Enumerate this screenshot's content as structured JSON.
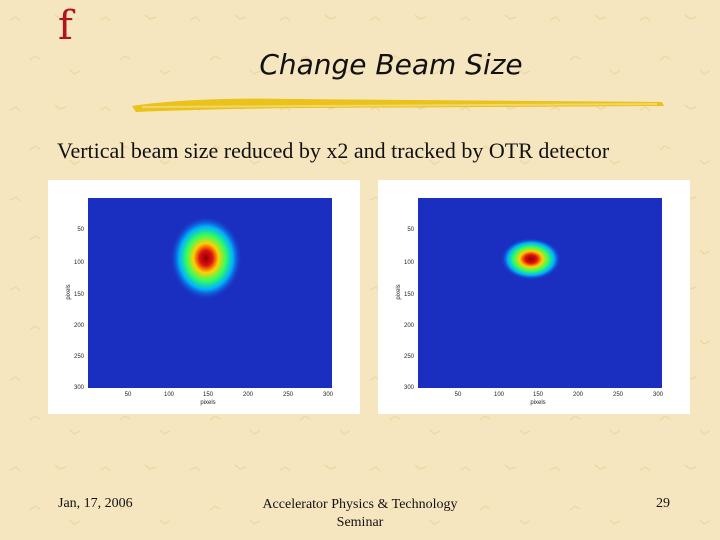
{
  "slide": {
    "logo_char": "f",
    "title": "Change Beam Size",
    "subtitle": "Vertical beam size reduced by x2 and tracked by OTR detector"
  },
  "plots": [
    {
      "ylabel": "pixels",
      "xlabel": "pixels",
      "yticks": [
        "50",
        "100",
        "150",
        "200",
        "250",
        "300"
      ],
      "xticks": [
        "50",
        "100",
        "150",
        "200",
        "250",
        "300"
      ]
    },
    {
      "ylabel": "pixels",
      "xlabel": "pixels",
      "yticks": [
        "50",
        "100",
        "150",
        "200",
        "250",
        "300"
      ],
      "xticks": [
        "50",
        "100",
        "150",
        "200",
        "250",
        "300"
      ]
    }
  ],
  "footer": {
    "date": "Jan, 17, 2006",
    "org_line1": "Accelerator Physics & Technology",
    "org_line2": "Seminar",
    "page": "29"
  },
  "colors": {
    "background": "#f6e6bf",
    "accent": "#b3121a",
    "underline": "#e9c21a"
  }
}
